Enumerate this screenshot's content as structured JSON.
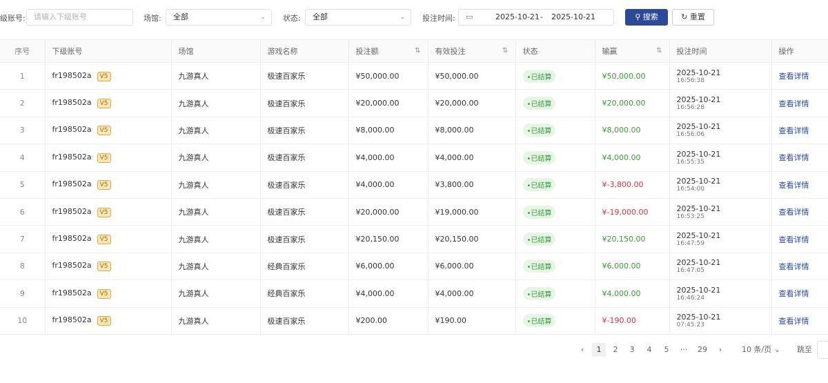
{
  "filters": {
    "account_label": "级账号:",
    "account_placeholder": "请输入下级账号",
    "venue_label": "场馆:",
    "venue_value": "全部",
    "status_label": "状态:",
    "status_value": "全部",
    "time_label": "投注时间:",
    "date_start": "2025-10-21",
    "date_sep": "-",
    "date_end": "2025-10-21",
    "search": "搜索",
    "reset": "重置"
  },
  "columns": [
    "序号",
    "下级账号",
    "场馆",
    "游戏名称",
    "投注额",
    "有效投注",
    "状态",
    "输赢",
    "投注时间",
    "操作"
  ],
  "rows": [
    {
      "idx": "1",
      "acct": "fr198502a",
      "vip": "V5",
      "venue": "九游真人",
      "game": "极速百家乐",
      "bet": "¥50,000.00",
      "valid": "¥50,000.00",
      "status": "•已结算",
      "win": "¥50,000.00",
      "neg": false,
      "date": "2025-10-21",
      "time": "16:56:38",
      "op": "查看详情"
    },
    {
      "idx": "2",
      "acct": "fr198502a",
      "vip": "V5",
      "venue": "九游真人",
      "game": "极速百家乐",
      "bet": "¥20,000.00",
      "valid": "¥20,000.00",
      "status": "•已结算",
      "win": "¥20,000.00",
      "neg": false,
      "date": "2025-10-21",
      "time": "16:56:28",
      "op": "查看详情"
    },
    {
      "idx": "3",
      "acct": "fr198502a",
      "vip": "V5",
      "venue": "九游真人",
      "game": "极速百家乐",
      "bet": "¥8,000.00",
      "valid": "¥8,000.00",
      "status": "•已结算",
      "win": "¥8,000.00",
      "neg": false,
      "date": "2025-10-21",
      "time": "16:56:06",
      "op": "查看详情"
    },
    {
      "idx": "4",
      "acct": "fr198502a",
      "vip": "V5",
      "venue": "九游真人",
      "game": "极速百家乐",
      "bet": "¥4,000.00",
      "valid": "¥4,000.00",
      "status": "•已结算",
      "win": "¥4,000.00",
      "neg": false,
      "date": "2025-10-21",
      "time": "16:55:35",
      "op": "查看详情"
    },
    {
      "idx": "5",
      "acct": "fr198502a",
      "vip": "V5",
      "venue": "九游真人",
      "game": "极速百家乐",
      "bet": "¥4,000.00",
      "valid": "¥3,800.00",
      "status": "•已结算",
      "win": "¥-3,800.00",
      "neg": true,
      "date": "2025-10-21",
      "time": "16:54:00",
      "op": "查看详情"
    },
    {
      "idx": "6",
      "acct": "fr198502a",
      "vip": "V5",
      "venue": "九游真人",
      "game": "极速百家乐",
      "bet": "¥20,000.00",
      "valid": "¥19,000.00",
      "status": "•已结算",
      "win": "¥-19,000.00",
      "neg": true,
      "date": "2025-10-21",
      "time": "16:53:25",
      "op": "查看详情"
    },
    {
      "idx": "7",
      "acct": "fr198502a",
      "vip": "V5",
      "venue": "九游真人",
      "game": "极速百家乐",
      "bet": "¥20,150.00",
      "valid": "¥20,150.00",
      "status": "•已结算",
      "win": "¥20,150.00",
      "neg": false,
      "date": "2025-10-21",
      "time": "16:47:59",
      "op": "查看详情"
    },
    {
      "idx": "8",
      "acct": "fr198502a",
      "vip": "V5",
      "venue": "九游真人",
      "game": "经典百家乐",
      "bet": "¥6,000.00",
      "valid": "¥6,000.00",
      "status": "•已结算",
      "win": "¥6,000.00",
      "neg": false,
      "date": "2025-10-21",
      "time": "16:47:05",
      "op": "查看详情"
    },
    {
      "idx": "9",
      "acct": "fr198502a",
      "vip": "V5",
      "venue": "九游真人",
      "game": "经典百家乐",
      "bet": "¥4,000.00",
      "valid": "¥4,000.00",
      "status": "•已结算",
      "win": "¥4,000.00",
      "neg": false,
      "date": "2025-10-21",
      "time": "16:46:24",
      "op": "查看详情"
    },
    {
      "idx": "10",
      "acct": "fr198502a",
      "vip": "V5",
      "venue": "九游真人",
      "game": "极速百家乐",
      "bet": "¥200.00",
      "valid": "¥190.00",
      "status": "•已结算",
      "win": "¥-190.00",
      "neg": true,
      "date": "2025-10-21",
      "time": "07:45:23",
      "op": "查看详情"
    }
  ],
  "pager": {
    "prev": "‹",
    "pages": [
      "1",
      "2",
      "3",
      "4",
      "5",
      "···",
      "29"
    ],
    "current": "1",
    "next": "›",
    "size": "10 条/页",
    "jump": "跳至"
  },
  "colors": {
    "primary": "#2d4a9a",
    "positive": "#3a9a3a",
    "negative": "#d0333f"
  }
}
